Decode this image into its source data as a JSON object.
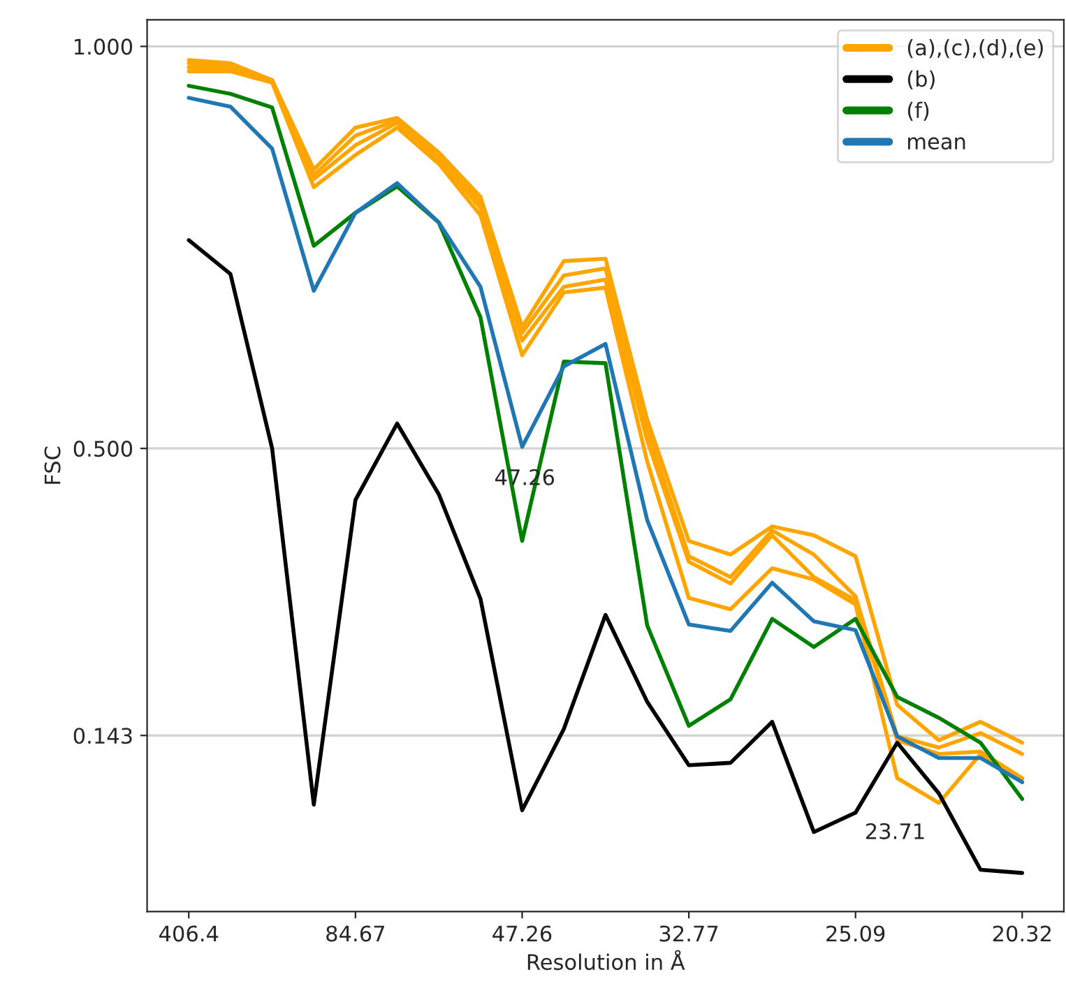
{
  "chart_data": {
    "type": "line",
    "xlabel": "Resolution in Å",
    "ylabel": "FSC",
    "categories": [
      "406.4",
      null,
      null,
      null,
      "84.67",
      null,
      null,
      null,
      "47.26",
      null,
      null,
      null,
      "32.77",
      null,
      null,
      null,
      "25.09",
      null,
      null,
      null,
      "20.32"
    ],
    "series": [
      {
        "name": "(a),(c),(d),(e)",
        "color": "#ffa500",
        "values": [
          0.983,
          0.979,
          0.958,
          0.847,
          0.899,
          0.911,
          0.868,
          0.813,
          0.651,
          0.733,
          0.736,
          0.536,
          0.385,
          0.368,
          0.403,
          0.392,
          0.366,
          0.181,
          0.137,
          0.16,
          0.134
        ]
      },
      {
        "color": "#ffa500",
        "values": [
          0.979,
          0.976,
          0.958,
          0.84,
          0.889,
          0.908,
          0.865,
          0.806,
          0.644,
          0.715,
          0.724,
          0.523,
          0.366,
          0.34,
          0.398,
          0.368,
          0.316,
          0.142,
          0.128,
          0.146,
          0.12
        ]
      },
      {
        "color": "#ffa500",
        "values": [
          0.974,
          0.972,
          0.957,
          0.835,
          0.877,
          0.905,
          0.859,
          0.799,
          0.634,
          0.701,
          0.71,
          0.51,
          0.359,
          0.332,
          0.392,
          0.34,
          0.311,
          0.137,
          0.12,
          0.123,
          0.09
        ]
      },
      {
        "color": "#ffa500",
        "values": [
          0.969,
          0.969,
          0.955,
          0.825,
          0.865,
          0.899,
          0.854,
          0.79,
          0.616,
          0.694,
          0.7,
          0.484,
          0.314,
          0.3,
          0.351,
          0.337,
          0.306,
          0.09,
          0.059,
          0.12,
          0.089
        ]
      },
      {
        "name": "(b)",
        "color": "#000000",
        "values": [
          0.759,
          0.717,
          0.5,
          0.057,
          0.436,
          0.531,
          0.443,
          0.313,
          0.05,
          0.151,
          0.293,
          0.185,
          0.106,
          0.109,
          0.16,
          0.023,
          0.047,
          0.134,
          0.071,
          -0.024,
          -0.028
        ]
      },
      {
        "name": "(f)",
        "color": "#008000",
        "values": [
          0.951,
          0.941,
          0.924,
          0.752,
          0.793,
          0.826,
          0.781,
          0.663,
          0.385,
          0.608,
          0.606,
          0.28,
          0.155,
          0.188,
          0.288,
          0.253,
          0.288,
          0.191,
          0.165,
          0.134,
          0.064
        ]
      },
      {
        "name": "mean",
        "color": "#1f77b4",
        "values": [
          0.936,
          0.925,
          0.873,
          0.696,
          0.793,
          0.83,
          0.781,
          0.701,
          0.502,
          0.602,
          0.63,
          0.411,
          0.281,
          0.273,
          0.333,
          0.285,
          0.274,
          0.142,
          0.115,
          0.115,
          0.085
        ]
      }
    ],
    "ylim": [
      -0.076,
      1.033
    ],
    "yticks": [
      {
        "value": 0.143,
        "label": "0.143"
      },
      {
        "value": 0.5,
        "label": "0.500"
      },
      {
        "value": 1.0,
        "label": "1.000"
      }
    ],
    "grid": "y",
    "legend": "top right",
    "annotations": [
      "47.26",
      "23.71"
    ]
  }
}
